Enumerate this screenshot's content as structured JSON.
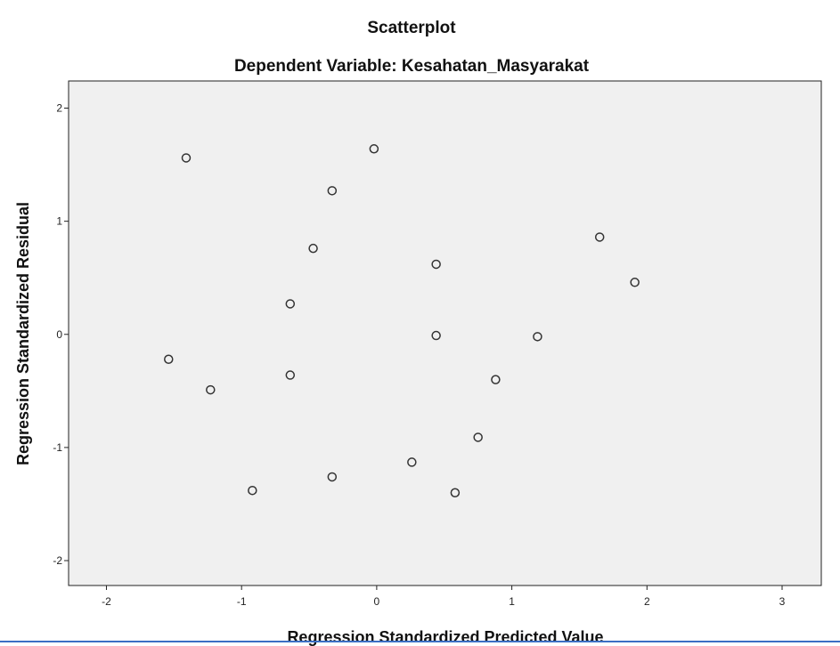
{
  "chart_data": {
    "type": "scatter",
    "title": "Scatterplot",
    "subtitle": "Dependent Variable: Kesahatan_Masyarakat",
    "x_label": "Regression Standardized Predicted Value",
    "y_label": "Regression Standardized Residual",
    "xlim": [
      -2.28,
      3.29
    ],
    "ylim": [
      -2.22,
      2.24
    ],
    "xticks": [
      -2,
      -1,
      0,
      1,
      2,
      3
    ],
    "yticks": [
      -2,
      -1,
      0,
      1,
      2
    ],
    "color": "#333333",
    "background": "#f0f0f0",
    "x": [
      -1.41,
      -0.02,
      -0.33,
      -0.47,
      0.44,
      1.65,
      1.91,
      -0.64,
      0.44,
      1.19,
      -1.54,
      -1.23,
      -0.64,
      0.88,
      0.75,
      0.26,
      -0.33,
      -0.92,
      0.58
    ],
    "values": [
      1.56,
      1.64,
      1.27,
      0.76,
      0.62,
      0.86,
      0.46,
      0.27,
      -0.01,
      -0.02,
      -0.22,
      -0.49,
      -0.36,
      -0.4,
      -0.91,
      -1.13,
      -1.26,
      -1.38,
      -1.4
    ]
  }
}
